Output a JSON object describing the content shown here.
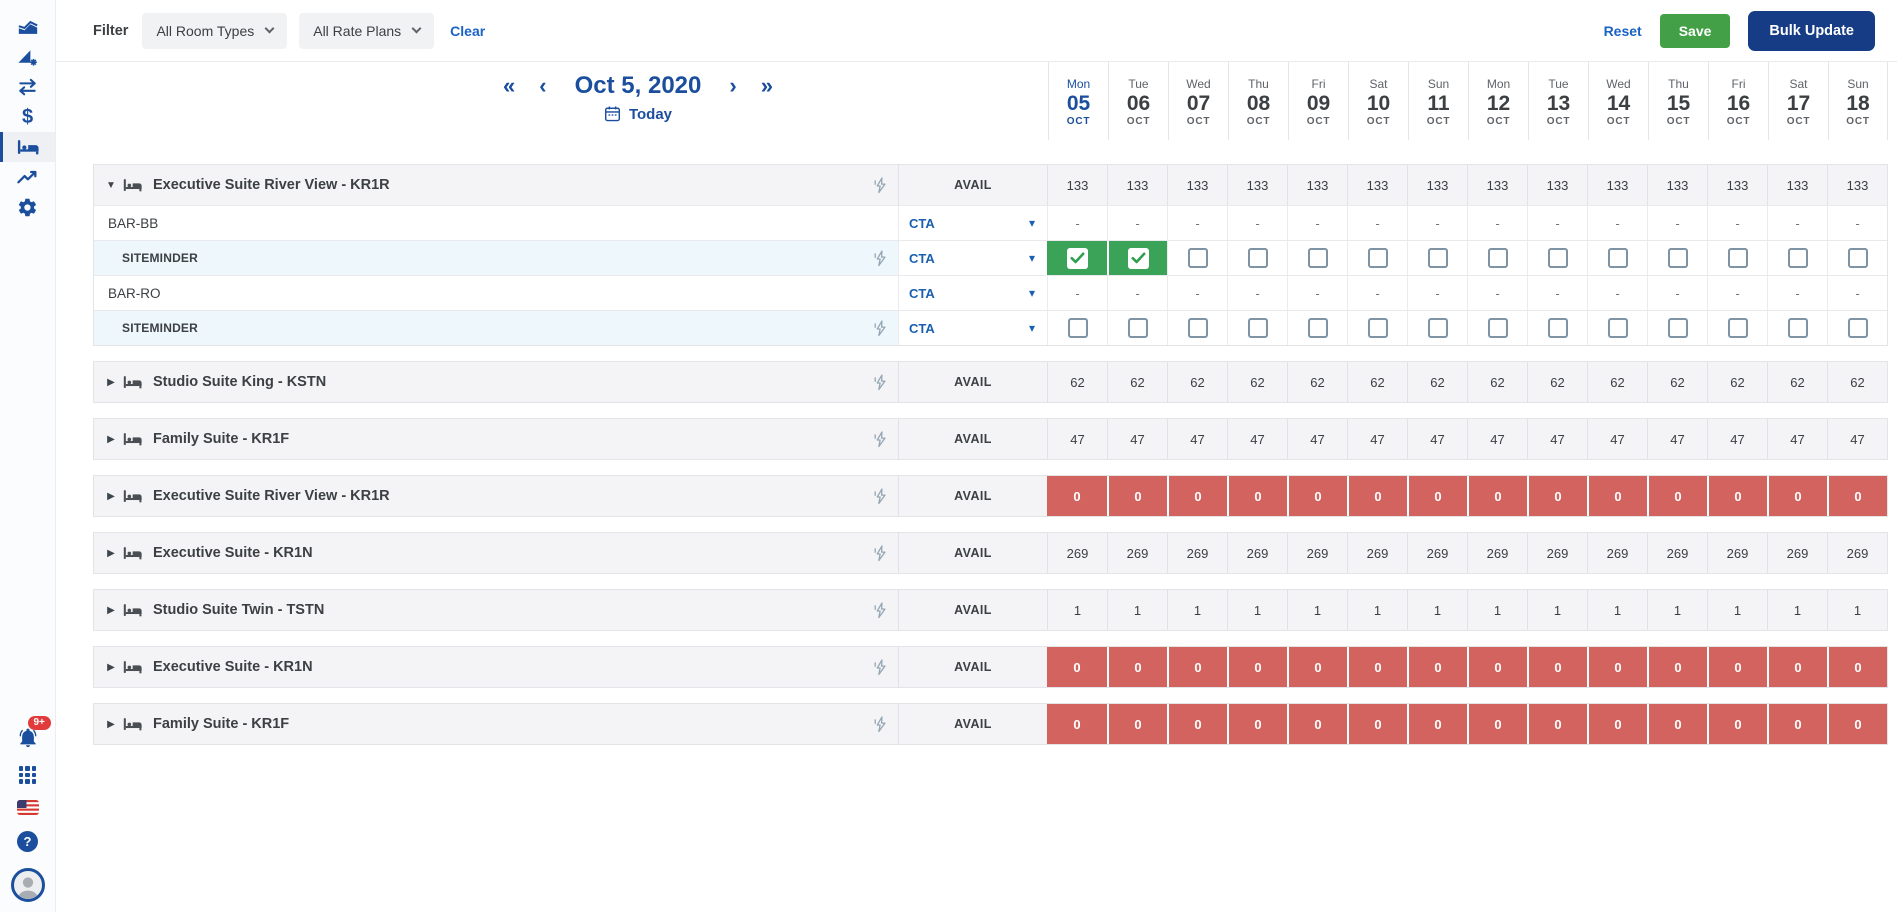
{
  "sidebar": {
    "top_items": [
      {
        "icon": "area-chart-icon",
        "active": false
      },
      {
        "icon": "analytics-gear-icon",
        "active": false
      },
      {
        "icon": "swap-arrows-icon",
        "active": false
      },
      {
        "icon": "dollar-icon",
        "active": false
      },
      {
        "icon": "bed-icon",
        "active": true
      },
      {
        "icon": "trending-up-icon",
        "active": false
      },
      {
        "icon": "gear-icon",
        "active": false
      }
    ],
    "notification_count": "9+"
  },
  "filter_bar": {
    "filter_label": "Filter",
    "room_types_value": "All Room Types",
    "rate_plans_value": "All Rate Plans",
    "clear_label": "Clear",
    "reset_label": "Reset",
    "save_label": "Save",
    "bulk_update_label": "Bulk Update"
  },
  "calendar": {
    "selected_date": "Oct 5, 2020",
    "today_label": "Today",
    "days": [
      {
        "dow": "Mon",
        "day": "05",
        "month": "OCT",
        "today": true
      },
      {
        "dow": "Tue",
        "day": "06",
        "month": "OCT",
        "today": false
      },
      {
        "dow": "Wed",
        "day": "07",
        "month": "OCT",
        "today": false
      },
      {
        "dow": "Thu",
        "day": "08",
        "month": "OCT",
        "today": false
      },
      {
        "dow": "Fri",
        "day": "09",
        "month": "OCT",
        "today": false
      },
      {
        "dow": "Sat",
        "day": "10",
        "month": "OCT",
        "today": false
      },
      {
        "dow": "Sun",
        "day": "11",
        "month": "OCT",
        "today": false
      },
      {
        "dow": "Mon",
        "day": "12",
        "month": "OCT",
        "today": false
      },
      {
        "dow": "Tue",
        "day": "13",
        "month": "OCT",
        "today": false
      },
      {
        "dow": "Wed",
        "day": "14",
        "month": "OCT",
        "today": false
      },
      {
        "dow": "Thu",
        "day": "15",
        "month": "OCT",
        "today": false
      },
      {
        "dow": "Fri",
        "day": "16",
        "month": "OCT",
        "today": false
      },
      {
        "dow": "Sat",
        "day": "17",
        "month": "OCT",
        "today": false
      },
      {
        "dow": "Sun",
        "day": "18",
        "month": "OCT",
        "today": false
      }
    ]
  },
  "table": {
    "avail_label": "AVAIL",
    "cta_label": "CTA",
    "groups": [
      {
        "title": "Executive Suite River View - KR1R",
        "expanded": true,
        "avail_style": "normal",
        "avail_values": [
          "133",
          "133",
          "133",
          "133",
          "133",
          "133",
          "133",
          "133",
          "133",
          "133",
          "133",
          "133",
          "133",
          "133"
        ],
        "children": [
          {
            "type": "rate_plan",
            "name": "BAR-BB",
            "values": [
              "-",
              "-",
              "-",
              "-",
              "-",
              "-",
              "-",
              "-",
              "-",
              "-",
              "-",
              "-",
              "-",
              "-"
            ]
          },
          {
            "type": "channel",
            "name": "SITEMINDER",
            "checks": [
              true,
              true,
              false,
              false,
              false,
              false,
              false,
              false,
              false,
              false,
              false,
              false,
              false,
              false
            ]
          },
          {
            "type": "rate_plan",
            "name": "BAR-RO",
            "values": [
              "-",
              "-",
              "-",
              "-",
              "-",
              "-",
              "-",
              "-",
              "-",
              "-",
              "-",
              "-",
              "-",
              "-"
            ]
          },
          {
            "type": "channel",
            "name": "SITEMINDER",
            "checks": [
              false,
              false,
              false,
              false,
              false,
              false,
              false,
              false,
              false,
              false,
              false,
              false,
              false,
              false
            ]
          }
        ]
      },
      {
        "title": "Studio Suite King - KSTN",
        "expanded": false,
        "avail_style": "normal",
        "avail_values": [
          "62",
          "62",
          "62",
          "62",
          "62",
          "62",
          "62",
          "62",
          "62",
          "62",
          "62",
          "62",
          "62",
          "62"
        ]
      },
      {
        "title": "Family Suite - KR1F",
        "expanded": false,
        "avail_style": "normal",
        "avail_values": [
          "47",
          "47",
          "47",
          "47",
          "47",
          "47",
          "47",
          "47",
          "47",
          "47",
          "47",
          "47",
          "47",
          "47"
        ]
      },
      {
        "title": "Executive Suite River View - KR1R",
        "expanded": false,
        "avail_style": "critical",
        "avail_values": [
          "0",
          "0",
          "0",
          "0",
          "0",
          "0",
          "0",
          "0",
          "0",
          "0",
          "0",
          "0",
          "0",
          "0"
        ]
      },
      {
        "title": "Executive Suite - KR1N",
        "expanded": false,
        "avail_style": "normal",
        "avail_values": [
          "269",
          "269",
          "269",
          "269",
          "269",
          "269",
          "269",
          "269",
          "269",
          "269",
          "269",
          "269",
          "269",
          "269"
        ]
      },
      {
        "title": "Studio Suite Twin - TSTN",
        "expanded": false,
        "avail_style": "normal",
        "avail_values": [
          "1",
          "1",
          "1",
          "1",
          "1",
          "1",
          "1",
          "1",
          "1",
          "1",
          "1",
          "1",
          "1",
          "1"
        ]
      },
      {
        "title": "Executive Suite - KR1N",
        "expanded": false,
        "avail_style": "critical",
        "avail_values": [
          "0",
          "0",
          "0",
          "0",
          "0",
          "0",
          "0",
          "0",
          "0",
          "0",
          "0",
          "0",
          "0",
          "0"
        ]
      },
      {
        "title": "Family Suite - KR1F",
        "expanded": false,
        "avail_style": "critical",
        "avail_values": [
          "0",
          "0",
          "0",
          "0",
          "0",
          "0",
          "0",
          "0",
          "0",
          "0",
          "0",
          "0",
          "0",
          "0"
        ]
      }
    ]
  },
  "icons": {
    "expanded": "▼",
    "collapsed": "▶",
    "caret": "▾",
    "dollar": "$",
    "help": "?",
    "nav_first": "«",
    "nav_prev": "‹",
    "nav_next": "›",
    "nav_last": "»"
  },
  "colors": {
    "accent_blue": "#1b4f9e",
    "link_blue": "#1a63c5",
    "save_green": "#43a047",
    "bulk_update_navy": "#153c85",
    "checked_green": "#3aa357",
    "zero_red": "#d2635e",
    "badge_red": "#e23b3b",
    "channel_row_blue": "#eef8fc",
    "group_row_gray": "#f4f4f6"
  }
}
